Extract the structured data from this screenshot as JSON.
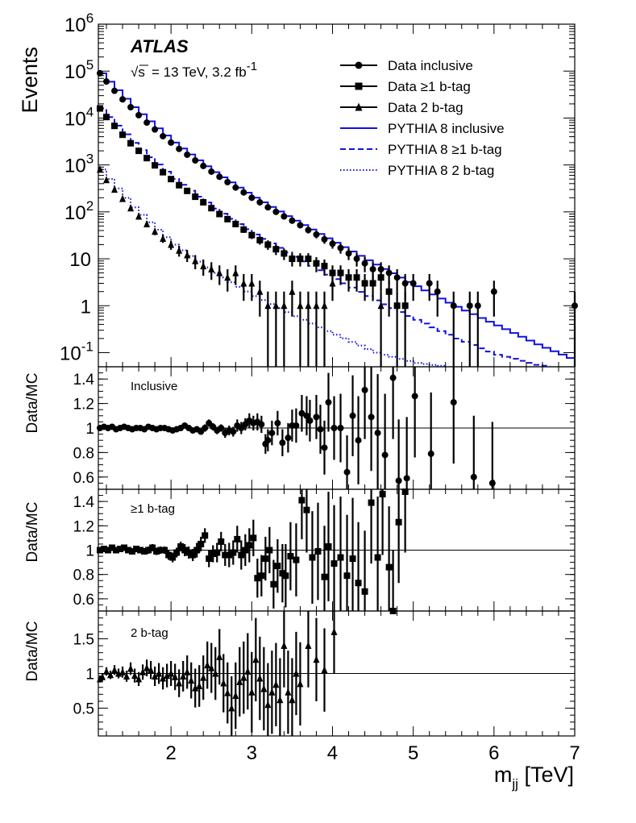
{
  "chart_data": {
    "type": "scatter",
    "title": "",
    "xlabel": "m_jj [TeV]",
    "xlabel_main": "m",
    "xlabel_sub": "jj",
    "xlabel_unit": "[TeV]",
    "xlim": [
      1.1,
      7.0
    ],
    "x_ticks": [
      2,
      3,
      4,
      5,
      6,
      7
    ],
    "experiment": "ATLAS",
    "sqrt_s": "s",
    "condition": "= 13 TeV,  3.2 fb",
    "lumi_exp": "-1",
    "main_panel": {
      "ylabel": "Events",
      "yscale": "log",
      "ylim": [
        0.05,
        1000000
      ],
      "y_ticks": [
        {
          "value": 1000000,
          "base": "10",
          "exp": "6"
        },
        {
          "value": 100000,
          "base": "10",
          "exp": "5"
        },
        {
          "value": 10000,
          "base": "10",
          "exp": "4"
        },
        {
          "value": 1000,
          "base": "10",
          "exp": "3"
        },
        {
          "value": 100,
          "base": "10",
          "exp": "2"
        },
        {
          "value": 10,
          "base": "10",
          "exp": ""
        },
        {
          "value": 1,
          "base": "1",
          "exp": ""
        },
        {
          "value": 0.1,
          "base": "10",
          "exp": "-1"
        }
      ],
      "legend": [
        {
          "label": "Data inclusive",
          "kind": "data",
          "marker": "circle"
        },
        {
          "label": "Data ≥1 b-tag",
          "kind": "data",
          "marker": "square"
        },
        {
          "label": "Data 2 b-tag",
          "kind": "data",
          "marker": "triangle"
        },
        {
          "label": "PYTHIA 8 inclusive",
          "kind": "mc",
          "dash": "solid"
        },
        {
          "label": "PYTHIA 8 ≥1 b-tag",
          "kind": "mc",
          "dash": "dashed"
        },
        {
          "label": "PYTHIA 8 2 b-tag",
          "kind": "mc",
          "dash": "dotted"
        }
      ],
      "mc_color": "#1010e0",
      "data_color": "#000000",
      "series": [
        {
          "name": "Data inclusive",
          "marker": "circle",
          "x": [
            1.12,
            1.2,
            1.3,
            1.4,
            1.5,
            1.6,
            1.7,
            1.8,
            1.9,
            2.0,
            2.1,
            2.2,
            2.3,
            2.4,
            2.5,
            2.6,
            2.7,
            2.8,
            2.9,
            3.0,
            3.1,
            3.2,
            3.3,
            3.4,
            3.5,
            3.6,
            3.7,
            3.8,
            3.9,
            4.0,
            4.1,
            4.2,
            4.3,
            4.4,
            4.5,
            4.6,
            4.7,
            4.8,
            4.9,
            5.0,
            5.2,
            5.3,
            5.5,
            5.7,
            5.8,
            6.0,
            7.0
          ],
          "y": [
            90000,
            60000,
            38000,
            25000,
            17000,
            11500,
            8000,
            5700,
            4100,
            3000,
            2200,
            1650,
            1250,
            950,
            720,
            560,
            430,
            330,
            260,
            200,
            160,
            125,
            100,
            80,
            65,
            52,
            41,
            33,
            26,
            21,
            17,
            13,
            10,
            8,
            6,
            6,
            5,
            4,
            3,
            3,
            3,
            2,
            1,
            1,
            1,
            2,
            1
          ]
        },
        {
          "name": "Data ≥1 b-tag",
          "marker": "square",
          "x": [
            1.12,
            1.2,
            1.3,
            1.4,
            1.5,
            1.6,
            1.7,
            1.8,
            1.9,
            2.0,
            2.1,
            2.2,
            2.3,
            2.4,
            2.5,
            2.6,
            2.7,
            2.8,
            2.9,
            3.0,
            3.1,
            3.2,
            3.3,
            3.4,
            3.5,
            3.6,
            3.7,
            3.8,
            3.9,
            4.0,
            4.1,
            4.2,
            4.3,
            4.4,
            4.5,
            4.6,
            4.7,
            4.8,
            4.9
          ],
          "y": [
            16000,
            10500,
            6800,
            4400,
            2900,
            2000,
            1400,
            980,
            700,
            500,
            370,
            280,
            210,
            160,
            120,
            90,
            70,
            55,
            42,
            32,
            25,
            20,
            16,
            13,
            10,
            10,
            10,
            8,
            7,
            5,
            5,
            4,
            4,
            3,
            3,
            4,
            2,
            1,
            1
          ]
        },
        {
          "name": "Data 2 b-tag",
          "marker": "triangle",
          "x": [
            1.12,
            1.2,
            1.3,
            1.4,
            1.5,
            1.6,
            1.7,
            1.8,
            1.9,
            2.0,
            2.1,
            2.2,
            2.3,
            2.4,
            2.5,
            2.6,
            2.7,
            2.8,
            2.9,
            3.0,
            3.1,
            3.2,
            3.3,
            3.4,
            3.5,
            3.6,
            3.7,
            3.8,
            3.9,
            4.0,
            4.6
          ],
          "y": [
            800,
            480,
            300,
            190,
            120,
            80,
            55,
            38,
            27,
            20,
            15,
            12,
            9,
            7,
            6,
            5,
            4,
            5,
            3,
            3,
            2,
            1,
            1,
            1,
            2,
            1,
            1,
            1,
            1,
            3,
            1
          ]
        },
        {
          "name": "PYTHIA 8 inclusive",
          "line": "solid",
          "x": [
            1.1,
            1.5,
            2.0,
            2.5,
            3.0,
            3.5,
            4.0,
            4.5,
            5.0,
            5.5,
            6.0,
            6.5,
            7.0
          ],
          "y": [
            90000,
            17000,
            3000,
            700,
            200,
            65,
            22,
            7.5,
            2.6,
            0.95,
            0.38,
            0.15,
            0.065
          ]
        },
        {
          "name": "PYTHIA 8 ≥1 b-tag",
          "line": "dashed",
          "x": [
            1.1,
            1.5,
            2.0,
            2.5,
            3.0,
            3.5,
            4.0,
            4.5,
            5.0,
            5.5,
            6.0,
            6.5,
            6.7
          ],
          "y": [
            16000,
            2950,
            505,
            118,
            33,
            11,
            3.7,
            1.3,
            0.5,
            0.2,
            0.09,
            0.055,
            0.05
          ]
        },
        {
          "name": "PYTHIA 8 2 b-tag",
          "line": "dotted",
          "x": [
            1.1,
            1.5,
            2.0,
            2.5,
            3.0,
            3.5,
            4.0,
            4.5,
            5.0,
            5.4
          ],
          "y": [
            800,
            125,
            20,
            5,
            1.6,
            0.6,
            0.24,
            0.1,
            0.06,
            0.05
          ]
        }
      ]
    },
    "ratio_panels": [
      {
        "label": "Inclusive",
        "ylabel": "Data/MC",
        "ylim": [
          0.5,
          1.5
        ],
        "y_ticks": [
          "1.4",
          "1.2",
          "1",
          "0.8",
          "0.6"
        ],
        "y_tick_values": [
          1.4,
          1.2,
          1.0,
          0.8,
          0.6
        ],
        "marker": "circle",
        "x": [
          1.12,
          1.17,
          1.22,
          1.27,
          1.32,
          1.37,
          1.42,
          1.47,
          1.52,
          1.57,
          1.62,
          1.67,
          1.72,
          1.77,
          1.82,
          1.87,
          1.92,
          1.97,
          2.02,
          2.07,
          2.12,
          2.17,
          2.22,
          2.27,
          2.32,
          2.37,
          2.42,
          2.47,
          2.52,
          2.57,
          2.62,
          2.67,
          2.72,
          2.77,
          2.82,
          2.87,
          2.92,
          2.97,
          3.02,
          3.07,
          3.12,
          3.17,
          3.2,
          3.25,
          3.32,
          3.38,
          3.45,
          3.5,
          3.55,
          3.62,
          3.68,
          3.72,
          3.8,
          3.85,
          3.9,
          3.95,
          4.02,
          4.1,
          4.18,
          4.25,
          4.32,
          4.4,
          4.48,
          4.56,
          4.65,
          4.75,
          4.82,
          4.92,
          5.02,
          5.22,
          5.5,
          5.75,
          5.98
        ],
        "y": [
          1.0,
          1.01,
          1.0,
          1.01,
          0.99,
          1.0,
          1.01,
          1.0,
          0.99,
          1.0,
          1.0,
          0.99,
          1.01,
          1.0,
          0.99,
          1.0,
          1.0,
          0.99,
          0.98,
          0.99,
          1.0,
          1.02,
          1.0,
          0.98,
          0.99,
          0.97,
          1.0,
          1.04,
          1.01,
          0.98,
          1.0,
          0.96,
          0.98,
          0.97,
          1.02,
          1.0,
          1.03,
          1.06,
          1.04,
          1.05,
          1.03,
          0.87,
          0.9,
          0.96,
          1.04,
          0.88,
          0.92,
          1.02,
          1.02,
          1.12,
          1.1,
          1.06,
          1.09,
          0.99,
          0.84,
          1.21,
          1.0,
          1.0,
          0.64,
          1.1,
          0.9,
          1.31,
          1.09,
          0.96,
          0.78,
          1.41,
          0.57,
          0.59,
          1.26,
          0.79,
          1.21,
          0.6,
          0.55
        ],
        "err": [
          0.01,
          0.01,
          0.01,
          0.01,
          0.01,
          0.01,
          0.01,
          0.01,
          0.01,
          0.01,
          0.01,
          0.01,
          0.01,
          0.01,
          0.01,
          0.01,
          0.01,
          0.01,
          0.01,
          0.02,
          0.02,
          0.02,
          0.02,
          0.02,
          0.02,
          0.02,
          0.03,
          0.03,
          0.03,
          0.03,
          0.03,
          0.04,
          0.04,
          0.04,
          0.05,
          0.05,
          0.05,
          0.06,
          0.06,
          0.07,
          0.07,
          0.08,
          0.09,
          0.1,
          0.1,
          0.11,
          0.12,
          0.13,
          0.14,
          0.15,
          0.16,
          0.17,
          0.18,
          0.2,
          0.22,
          0.24,
          0.26,
          0.28,
          0.3,
          0.33,
          0.36,
          0.4,
          0.44,
          0.48,
          0.5,
          0.5,
          0.5,
          0.5,
          0.5,
          0.5,
          0.5,
          0.5,
          0.5
        ]
      },
      {
        "label": "≥1 b-tag",
        "ylabel": "Data/MC",
        "ylim": [
          0.5,
          1.5
        ],
        "y_ticks": [
          "1.4",
          "1.2",
          "1",
          "0.8",
          "0.6"
        ],
        "y_tick_values": [
          1.4,
          1.2,
          1.0,
          0.8,
          0.6
        ],
        "marker": "square",
        "x": [
          1.12,
          1.17,
          1.22,
          1.27,
          1.32,
          1.37,
          1.42,
          1.47,
          1.52,
          1.57,
          1.62,
          1.67,
          1.72,
          1.77,
          1.82,
          1.87,
          1.92,
          1.97,
          2.02,
          2.07,
          2.12,
          2.17,
          2.22,
          2.27,
          2.32,
          2.37,
          2.42,
          2.47,
          2.52,
          2.57,
          2.62,
          2.67,
          2.72,
          2.77,
          2.82,
          2.87,
          2.92,
          2.97,
          3.02,
          3.07,
          3.12,
          3.17,
          3.22,
          3.27,
          3.32,
          3.38,
          3.42,
          3.48,
          3.55,
          3.62,
          3.68,
          3.75,
          3.82,
          3.9,
          3.95,
          4.02,
          4.1,
          4.18,
          4.25,
          4.32,
          4.4,
          4.48,
          4.56,
          4.62,
          4.7,
          4.75,
          4.82,
          4.9
        ],
        "y": [
          1.0,
          1.01,
          1.0,
          1.02,
          1.0,
          1.01,
          1.02,
          1.0,
          0.99,
          1.01,
          1.0,
          0.99,
          1.0,
          1.02,
          0.99,
          1.0,
          1.0,
          0.96,
          0.94,
          0.98,
          1.03,
          1.0,
          0.98,
          0.96,
          1.0,
          1.05,
          1.12,
          0.93,
          0.97,
          0.98,
          1.07,
          0.96,
          0.96,
          0.98,
          1.09,
          0.96,
          1.0,
          1.04,
          1.1,
          0.77,
          0.79,
          0.93,
          1.0,
          0.72,
          0.87,
          0.81,
          0.79,
          0.95,
          0.92,
          1.41,
          1.33,
          0.94,
          0.99,
          0.78,
          1.03,
          0.89,
          0.94,
          0.79,
          0.93,
          0.73,
          0.66,
          1.39,
          0.94,
          1.46,
          0.86,
          0.5,
          1.23,
          1.48
        ],
        "err": [
          0.01,
          0.01,
          0.01,
          0.01,
          0.01,
          0.02,
          0.02,
          0.02,
          0.02,
          0.02,
          0.02,
          0.02,
          0.03,
          0.03,
          0.03,
          0.03,
          0.03,
          0.04,
          0.04,
          0.04,
          0.04,
          0.05,
          0.05,
          0.05,
          0.06,
          0.06,
          0.06,
          0.07,
          0.07,
          0.08,
          0.08,
          0.09,
          0.1,
          0.1,
          0.11,
          0.12,
          0.13,
          0.14,
          0.15,
          0.16,
          0.17,
          0.18,
          0.19,
          0.2,
          0.22,
          0.24,
          0.26,
          0.28,
          0.3,
          0.32,
          0.35,
          0.38,
          0.4,
          0.42,
          0.45,
          0.48,
          0.5,
          0.5,
          0.5,
          0.5,
          0.5,
          0.5,
          0.5,
          0.5,
          0.5,
          0.5,
          0.5,
          0.5
        ]
      },
      {
        "label": "2 b-tag",
        "ylabel": "Data/MC",
        "ylim": [
          0.1,
          1.9
        ],
        "y_ticks": [
          "1.5",
          "1",
          "0.5"
        ],
        "y_tick_values": [
          1.5,
          1.0,
          0.5
        ],
        "marker": "triangle",
        "x": [
          1.12,
          1.15,
          1.2,
          1.25,
          1.3,
          1.35,
          1.4,
          1.45,
          1.5,
          1.55,
          1.6,
          1.65,
          1.7,
          1.75,
          1.8,
          1.85,
          1.9,
          1.95,
          2.0,
          2.05,
          2.1,
          2.15,
          2.2,
          2.25,
          2.3,
          2.35,
          2.4,
          2.45,
          2.5,
          2.55,
          2.6,
          2.65,
          2.7,
          2.75,
          2.8,
          2.85,
          2.9,
          2.95,
          3.0,
          3.05,
          3.1,
          3.15,
          3.2,
          3.25,
          3.3,
          3.35,
          3.4,
          3.45,
          3.5,
          3.55,
          3.6,
          3.7,
          3.8,
          3.9,
          4.02
        ],
        "y": [
          0.92,
          0.95,
          1.03,
          0.98,
          1.05,
          1.0,
          1.02,
          0.96,
          1.07,
          0.97,
          0.92,
          1.02,
          1.08,
          1.05,
          0.96,
          1.0,
          0.93,
          0.97,
          1.0,
          0.95,
          0.86,
          0.96,
          1.02,
          0.9,
          0.79,
          0.82,
          0.94,
          1.12,
          1.08,
          1.0,
          1.24,
          0.86,
          0.72,
          0.5,
          0.68,
          0.88,
          0.94,
          1.03,
          0.73,
          1.2,
          0.93,
          0.78,
          0.55,
          0.73,
          0.84,
          0.62,
          1.4,
          0.73,
          0.62,
          1.0,
          0.85,
          1.4,
          1.2,
          1.05,
          1.6
        ],
        "err": [
          0.05,
          0.05,
          0.06,
          0.06,
          0.07,
          0.07,
          0.08,
          0.08,
          0.09,
          0.1,
          0.1,
          0.11,
          0.12,
          0.13,
          0.14,
          0.15,
          0.16,
          0.17,
          0.18,
          0.19,
          0.2,
          0.22,
          0.24,
          0.26,
          0.28,
          0.3,
          0.32,
          0.34,
          0.36,
          0.38,
          0.4,
          0.42,
          0.44,
          0.46,
          0.48,
          0.5,
          0.52,
          0.55,
          0.58,
          0.6,
          0.6,
          0.6,
          0.6,
          0.6,
          0.6,
          0.6,
          0.6,
          0.6,
          0.6,
          0.6,
          0.6,
          0.6,
          0.6,
          0.6,
          0.6
        ]
      }
    ]
  }
}
